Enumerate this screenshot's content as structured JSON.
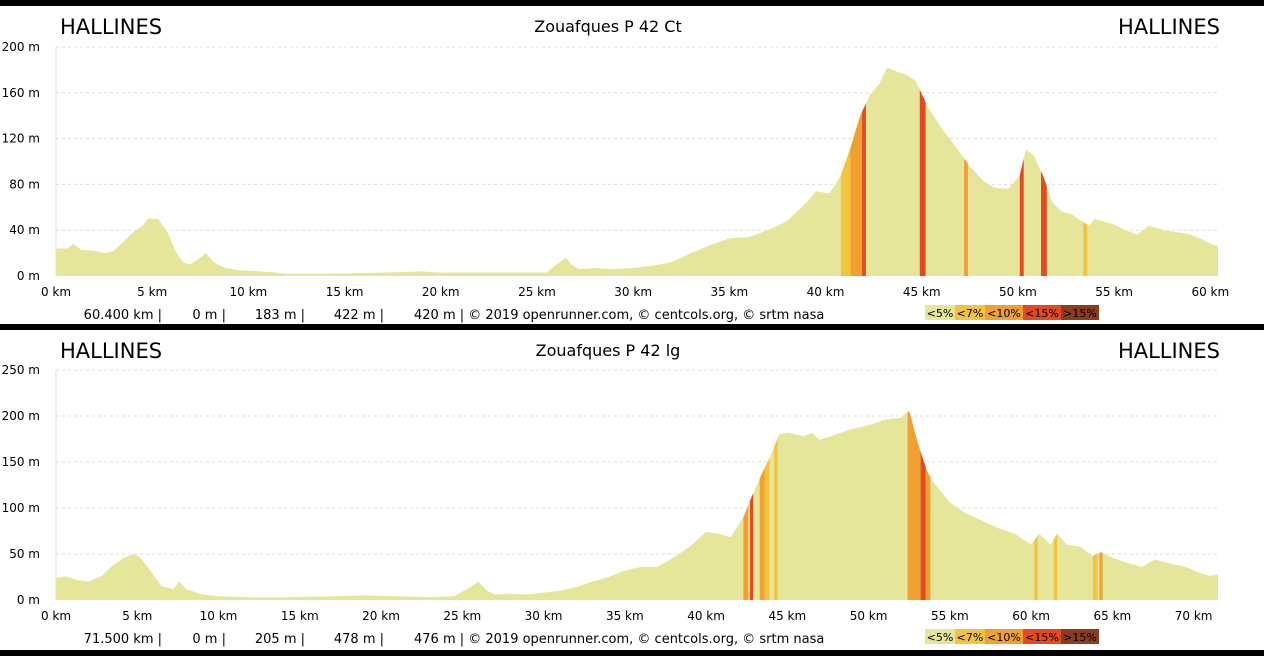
{
  "colors": {
    "lt5": "#e5e69a",
    "lt7": "#f3c33f",
    "lt10": "#f0a030",
    "lt15": "#e34a1f",
    "gt15": "#8a3c1c",
    "grid": "#dddddd",
    "text": "#000000"
  },
  "chart_data": [
    {
      "type": "area",
      "title": "Zouafques P 42 Ct",
      "start_label": "HALLINES",
      "end_label": "HALLINES",
      "xlabel": "",
      "ylabel": "",
      "xlim": [
        0,
        60.4
      ],
      "ylim": [
        0,
        200
      ],
      "x_ticks": [
        0,
        5,
        10,
        15,
        20,
        25,
        30,
        35,
        40,
        45,
        50,
        55,
        60
      ],
      "x_tick_labels": [
        "0 km",
        "5 km",
        "10 km",
        "15 km",
        "20 km",
        "25 km",
        "30 km",
        "35 km",
        "40 km",
        "45 km",
        "50 km",
        "55 km",
        "60 km"
      ],
      "y_ticks": [
        0,
        40,
        80,
        120,
        160,
        200
      ],
      "y_tick_labels": [
        "0 m",
        "40 m",
        "80 m",
        "120 m",
        "160 m",
        "200 m"
      ],
      "grid": true,
      "stats": [
        "60.400 km |",
        "0 m |",
        "183 m |",
        "422 m |",
        "420 m | © 2019 openrunner.com, © centcols.org, © srtm nasa"
      ],
      "legend": [
        "<5%",
        "<7%",
        "<10%",
        "<15%",
        ">15%"
      ],
      "legend_placement": "bottom-right",
      "profile": [
        [
          0,
          24
        ],
        [
          0.6,
          24
        ],
        [
          0.9,
          28
        ],
        [
          1.3,
          23
        ],
        [
          2,
          22
        ],
        [
          2.6,
          20
        ],
        [
          3,
          22
        ],
        [
          3.5,
          30
        ],
        [
          4,
          38
        ],
        [
          4.5,
          44
        ],
        [
          4.8,
          50
        ],
        [
          5.3,
          50
        ],
        [
          5.8,
          38
        ],
        [
          6.2,
          22
        ],
        [
          6.6,
          12
        ],
        [
          7,
          10
        ],
        [
          7.4,
          15
        ],
        [
          7.8,
          20
        ],
        [
          8.2,
          12
        ],
        [
          8.8,
          7
        ],
        [
          9.5,
          5
        ],
        [
          10.5,
          4
        ],
        [
          11.5,
          3
        ],
        [
          12,
          2
        ],
        [
          14,
          2
        ],
        [
          17,
          3
        ],
        [
          19,
          4
        ],
        [
          20,
          3
        ],
        [
          22,
          3
        ],
        [
          24,
          3
        ],
        [
          25.5,
          3
        ],
        [
          26,
          10
        ],
        [
          26.5,
          16
        ],
        [
          26.8,
          10
        ],
        [
          27.2,
          6
        ],
        [
          28,
          7
        ],
        [
          29,
          6
        ],
        [
          30,
          7
        ],
        [
          31,
          9
        ],
        [
          32,
          12
        ],
        [
          33,
          20
        ],
        [
          34,
          27
        ],
        [
          35,
          33
        ],
        [
          36,
          34
        ],
        [
          37,
          40
        ],
        [
          38,
          48
        ],
        [
          39,
          64
        ],
        [
          39.5,
          74
        ],
        [
          40.2,
          72
        ],
        [
          40.8,
          88
        ],
        [
          41.3,
          112
        ],
        [
          41.8,
          140
        ],
        [
          42.3,
          158
        ],
        [
          42.8,
          168
        ],
        [
          43.2,
          182
        ],
        [
          43.8,
          178
        ],
        [
          44.2,
          176
        ],
        [
          44.7,
          170
        ],
        [
          45.3,
          148
        ],
        [
          46,
          130
        ],
        [
          46.8,
          112
        ],
        [
          47.5,
          96
        ],
        [
          48.2,
          83
        ],
        [
          48.8,
          77
        ],
        [
          49.5,
          76
        ],
        [
          50.1,
          88
        ],
        [
          50.4,
          110
        ],
        [
          50.8,
          106
        ],
        [
          51.3,
          88
        ],
        [
          51.8,
          64
        ],
        [
          52.3,
          56
        ],
        [
          52.8,
          54
        ],
        [
          53.3,
          48
        ],
        [
          53.7,
          44
        ],
        [
          54,
          50
        ],
        [
          55,
          45
        ],
        [
          55.6,
          40
        ],
        [
          56.2,
          36
        ],
        [
          56.8,
          44
        ],
        [
          57.6,
          40
        ],
        [
          58.4,
          38
        ],
        [
          59,
          36
        ],
        [
          59.6,
          32
        ],
        [
          60,
          28
        ],
        [
          60.4,
          26
        ]
      ],
      "gradient_bands": [
        {
          "from": 40.8,
          "to": 41.3,
          "class": "lt7"
        },
        {
          "from": 41.3,
          "to": 41.9,
          "class": "lt10"
        },
        {
          "from": 41.9,
          "to": 42.1,
          "class": "lt15"
        },
        {
          "from": 44.9,
          "to": 45.2,
          "class": "lt15"
        },
        {
          "from": 47.2,
          "to": 47.4,
          "class": "lt10"
        },
        {
          "from": 50.1,
          "to": 50.3,
          "class": "lt15"
        },
        {
          "from": 51.2,
          "to": 51.5,
          "class": "lt15"
        },
        {
          "from": 53.4,
          "to": 53.6,
          "class": "lt7"
        }
      ]
    },
    {
      "type": "area",
      "title": "Zouafques P 42 lg",
      "start_label": "HALLINES",
      "end_label": "HALLINES",
      "xlabel": "",
      "ylabel": "",
      "xlim": [
        0,
        71.5
      ],
      "ylim": [
        0,
        250
      ],
      "x_ticks": [
        0,
        5,
        10,
        15,
        20,
        25,
        30,
        35,
        40,
        45,
        50,
        55,
        60,
        65,
        70
      ],
      "x_tick_labels": [
        "0 km",
        "5 km",
        "10 km",
        "15 km",
        "20 km",
        "25 km",
        "30 km",
        "35 km",
        "40 km",
        "45 km",
        "50 km",
        "55 km",
        "60 km",
        "65 km",
        "70 km"
      ],
      "y_ticks": [
        0,
        50,
        100,
        150,
        200,
        250
      ],
      "y_tick_labels": [
        "0 m",
        "50 m",
        "100 m",
        "150 m",
        "200 m",
        "250 m"
      ],
      "grid": true,
      "stats": [
        "71.500 km |",
        "0 m |",
        "205 m |",
        "478 m |",
        "476 m | © 2019 openrunner.com, © centcols.org, © srtm nasa"
      ],
      "legend": [
        "<5%",
        "<7%",
        "<10%",
        "<15%",
        ">15%"
      ],
      "legend_placement": "bottom-right",
      "profile": [
        [
          0,
          24
        ],
        [
          0.6,
          26
        ],
        [
          1.2,
          22
        ],
        [
          2,
          20
        ],
        [
          2.8,
          26
        ],
        [
          3.5,
          38
        ],
        [
          4.2,
          46
        ],
        [
          4.8,
          50
        ],
        [
          5.2,
          46
        ],
        [
          5.8,
          32
        ],
        [
          6.5,
          15
        ],
        [
          7.2,
          12
        ],
        [
          7.6,
          20
        ],
        [
          8,
          12
        ],
        [
          9,
          6
        ],
        [
          10,
          4
        ],
        [
          12,
          3
        ],
        [
          14,
          3
        ],
        [
          17,
          4
        ],
        [
          19,
          5
        ],
        [
          21,
          4
        ],
        [
          23,
          3
        ],
        [
          24.5,
          4
        ],
        [
          25.5,
          14
        ],
        [
          26,
          20
        ],
        [
          26.5,
          10
        ],
        [
          27,
          6
        ],
        [
          28,
          7
        ],
        [
          29,
          6
        ],
        [
          30,
          8
        ],
        [
          31,
          10
        ],
        [
          32,
          14
        ],
        [
          33,
          20
        ],
        [
          34,
          25
        ],
        [
          35,
          32
        ],
        [
          36,
          36
        ],
        [
          37,
          36
        ],
        [
          38,
          46
        ],
        [
          39,
          58
        ],
        [
          40,
          74
        ],
        [
          40.8,
          72
        ],
        [
          41.5,
          68
        ],
        [
          42.3,
          90
        ],
        [
          42.8,
          112
        ],
        [
          43.5,
          140
        ],
        [
          44,
          158
        ],
        [
          44.5,
          180
        ],
        [
          45,
          182
        ],
        [
          46,
          178
        ],
        [
          46.5,
          182
        ],
        [
          47,
          174
        ],
        [
          48,
          180
        ],
        [
          49,
          186
        ],
        [
          50,
          190
        ],
        [
          51,
          196
        ],
        [
          52,
          198
        ],
        [
          52.5,
          206
        ],
        [
          53,
          172
        ],
        [
          53.6,
          140
        ],
        [
          54,
          128
        ],
        [
          55,
          106
        ],
        [
          56,
          94
        ],
        [
          57,
          86
        ],
        [
          58,
          78
        ],
        [
          59,
          72
        ],
        [
          60,
          60
        ],
        [
          60.5,
          72
        ],
        [
          61.2,
          60
        ],
        [
          61.6,
          72
        ],
        [
          62.2,
          60
        ],
        [
          63,
          58
        ],
        [
          63.8,
          48
        ],
        [
          64.3,
          52
        ],
        [
          65,
          46
        ],
        [
          66,
          40
        ],
        [
          66.8,
          36
        ],
        [
          67.6,
          44
        ],
        [
          68.5,
          40
        ],
        [
          69.5,
          36
        ],
        [
          70.3,
          30
        ],
        [
          71,
          26
        ],
        [
          71.5,
          28
        ]
      ],
      "gradient_bands": [
        {
          "from": 42.3,
          "to": 42.6,
          "class": "lt10"
        },
        {
          "from": 42.7,
          "to": 42.9,
          "class": "lt15"
        },
        {
          "from": 43.3,
          "to": 43.6,
          "class": "lt10"
        },
        {
          "from": 43.6,
          "to": 43.9,
          "class": "lt7"
        },
        {
          "from": 44.2,
          "to": 44.4,
          "class": "lt7"
        },
        {
          "from": 52.4,
          "to": 53.2,
          "class": "lt10"
        },
        {
          "from": 53.2,
          "to": 53.5,
          "class": "lt15"
        },
        {
          "from": 53.5,
          "to": 53.8,
          "class": "lt10"
        },
        {
          "from": 60.2,
          "to": 60.4,
          "class": "lt7"
        },
        {
          "from": 61.4,
          "to": 61.6,
          "class": "lt7"
        },
        {
          "from": 63.8,
          "to": 64.1,
          "class": "lt7"
        },
        {
          "from": 64.2,
          "to": 64.4,
          "class": "lt10"
        }
      ]
    }
  ]
}
